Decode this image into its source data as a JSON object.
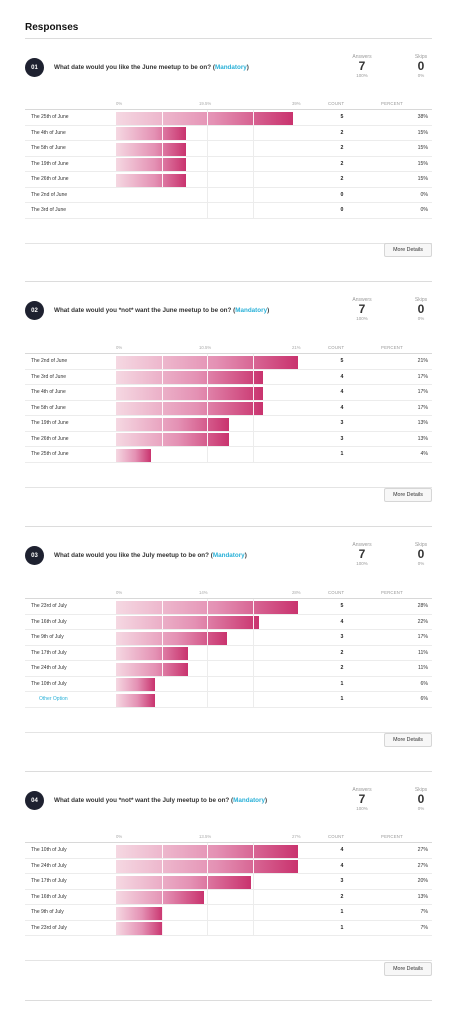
{
  "page": {
    "title": "Responses"
  },
  "questions": [
    {
      "number": "01",
      "text": "What date would you like the June meetup to be on?",
      "mandatory": "Mandatory",
      "answers_label": "Answers",
      "answers": "7",
      "answers_pct": "100%",
      "skips_label": "Skips",
      "skips": "0",
      "skips_pct": "0%",
      "count_header": "COUNT",
      "percent_header": "PERCENT",
      "more_details": "More Details",
      "chart_data": {
        "type": "bar",
        "ticks": [
          "0%",
          "19.5%",
          "39%"
        ],
        "xlim": [
          0,
          39
        ],
        "categories": [
          "The 25th of June",
          "The 4th of June",
          "The 5th of June",
          "The 19th of June",
          "The 26th of June",
          "The 2nd of June",
          "The 3rd of June"
        ],
        "counts": [
          "5",
          "2",
          "2",
          "2",
          "2",
          "0",
          "0"
        ],
        "percent_labels": [
          "38%",
          "15%",
          "15%",
          "15%",
          "15%",
          "0%",
          "0%"
        ],
        "values": [
          38,
          15,
          15,
          15,
          15,
          0,
          0
        ]
      }
    },
    {
      "number": "02",
      "text": "What date would you *not* want the June meetup to be on?",
      "mandatory": "Mandatory",
      "answers_label": "Answers",
      "answers": "7",
      "answers_pct": "100%",
      "skips_label": "Skips",
      "skips": "0",
      "skips_pct": "0%",
      "count_header": "COUNT",
      "percent_header": "PERCENT",
      "more_details": "More Details",
      "chart_data": {
        "type": "bar",
        "ticks": [
          "0%",
          "10.5%",
          "21%"
        ],
        "xlim": [
          0,
          21
        ],
        "categories": [
          "The 2nd of June",
          "The 3rd of June",
          "The 4th of June",
          "The 5th of June",
          "The 19th of June",
          "The 26th of June",
          "The 25th of June"
        ],
        "counts": [
          "5",
          "4",
          "4",
          "4",
          "3",
          "3",
          "1"
        ],
        "percent_labels": [
          "21%",
          "17%",
          "17%",
          "17%",
          "13%",
          "13%",
          "4%"
        ],
        "values": [
          21,
          17,
          17,
          17,
          13,
          13,
          4
        ]
      }
    },
    {
      "number": "03",
      "text": "What date would you like the July meetup to be on?",
      "mandatory": "Mandatory",
      "answers_label": "Answers",
      "answers": "7",
      "answers_pct": "100%",
      "skips_label": "Skips",
      "skips": "0",
      "skips_pct": "0%",
      "count_header": "COUNT",
      "percent_header": "PERCENT",
      "more_details": "More Details",
      "chart_data": {
        "type": "bar",
        "ticks": [
          "0%",
          "14%",
          "28%"
        ],
        "xlim": [
          0,
          28
        ],
        "categories": [
          "The 23rd of July",
          "The 16th of July",
          "The 9th of July",
          "The 17th of July",
          "The 24th of July",
          "The 10th of July",
          "Other Option"
        ],
        "counts": [
          "5",
          "4",
          "3",
          "2",
          "2",
          "1",
          "1"
        ],
        "percent_labels": [
          "28%",
          "22%",
          "17%",
          "11%",
          "11%",
          "6%",
          "6%"
        ],
        "values": [
          28,
          22,
          17,
          11,
          11,
          6,
          6
        ]
      }
    },
    {
      "number": "04",
      "text": "What date would you *not* want the July meetup to be on?",
      "mandatory": "Mandatory",
      "answers_label": "Answers",
      "answers": "7",
      "answers_pct": "100%",
      "skips_label": "Skips",
      "skips": "0",
      "skips_pct": "0%",
      "count_header": "COUNT",
      "percent_header": "PERCENT",
      "more_details": "More Details",
      "chart_data": {
        "type": "bar",
        "ticks": [
          "0%",
          "13.5%",
          "27%"
        ],
        "xlim": [
          0,
          27
        ],
        "categories": [
          "The 10th of July",
          "The 24th of July",
          "The 17th of July",
          "The 16th of July",
          "The 9th of July",
          "The 23rd of July"
        ],
        "counts": [
          "4",
          "4",
          "3",
          "2",
          "1",
          "1"
        ],
        "percent_labels": [
          "27%",
          "27%",
          "20%",
          "13%",
          "7%",
          "7%"
        ],
        "values": [
          27,
          27,
          20,
          13,
          7,
          7
        ]
      }
    }
  ]
}
